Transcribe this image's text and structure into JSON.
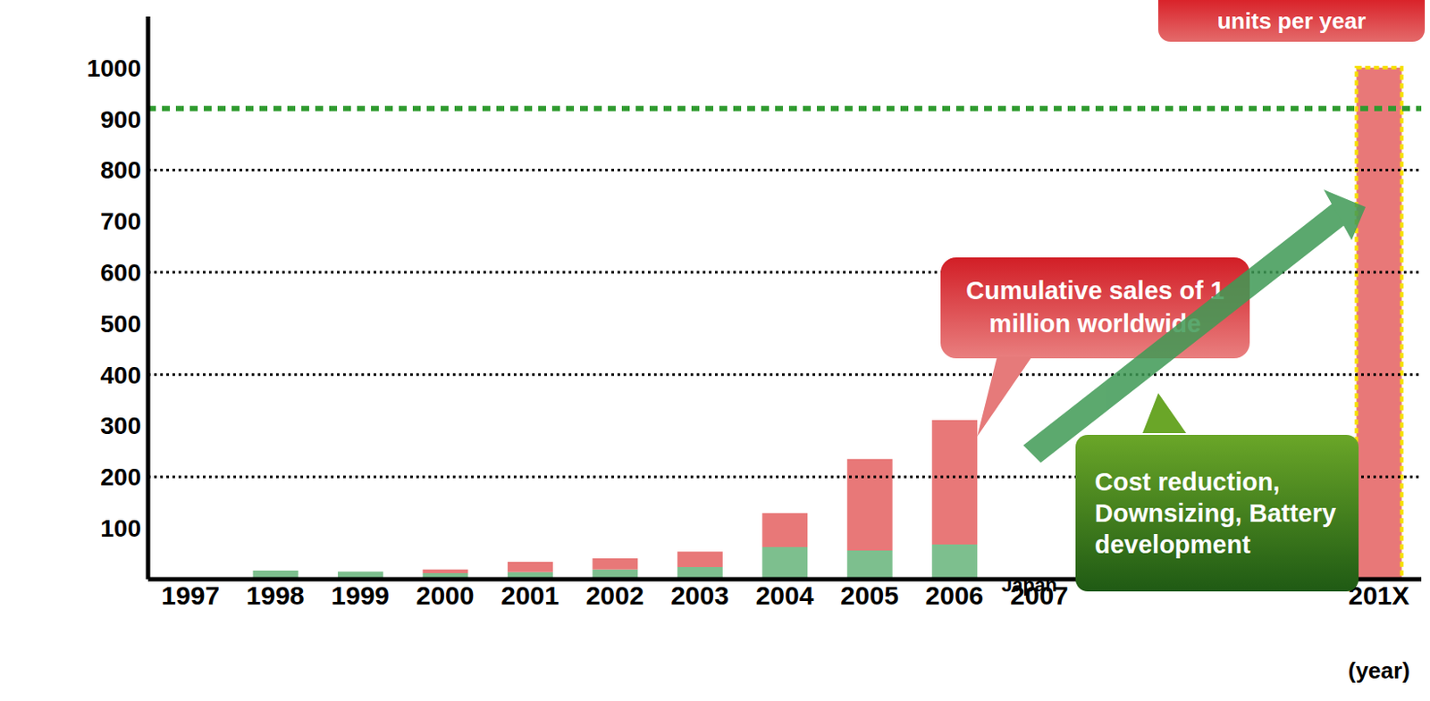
{
  "chart_data": {
    "type": "bar",
    "stacked": true,
    "categories": [
      "1997",
      "1998",
      "1999",
      "2000",
      "2001",
      "2002",
      "2003",
      "2004",
      "2005",
      "2006",
      "2007",
      null,
      null,
      null,
      "201X"
    ],
    "series": [
      {
        "name": "Japan",
        "color": "#7dbf8e",
        "values": [
          0,
          17,
          15,
          12,
          14,
          19,
          24,
          63,
          56,
          68,
          null,
          null,
          null,
          null,
          null
        ]
      },
      {
        "color": "#e87878",
        "values": [
          0,
          0,
          0,
          7,
          20,
          22,
          30,
          66,
          179,
          243,
          null,
          null,
          null,
          null,
          1000
        ]
      }
    ],
    "ylim": [
      0,
      1100
    ],
    "yticks": [
      100,
      200,
      300,
      400,
      500,
      600,
      700,
      800,
      900,
      1000
    ],
    "grid": false,
    "reference_lines": [
      200,
      400,
      600,
      800
    ],
    "target_level": 920,
    "x_label": "(year)",
    "annotations": {
      "top_callout": "units per year",
      "sales_callout": "Cumulative sales of 1 million worldwide",
      "cost_callout": "Cost reduction, Downsizing, Battery development"
    },
    "tick_labels": true,
    "legend": "none"
  }
}
